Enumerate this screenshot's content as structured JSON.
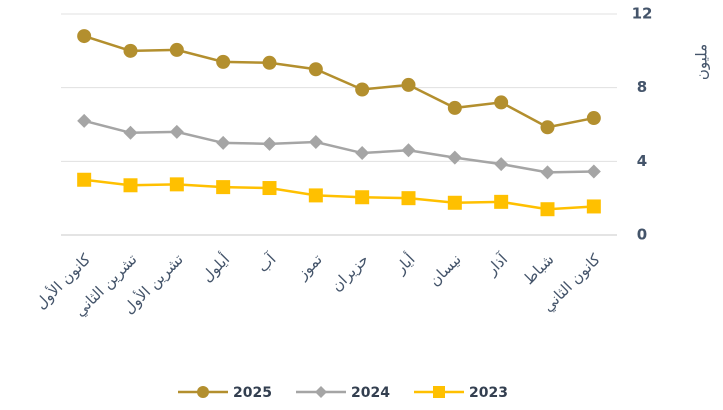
{
  "chart_data": {
    "type": "line",
    "y_label": "مليون",
    "categories": [
      "كانون الأول",
      "تشرين الثاني",
      "تشرين الأول",
      "أيلول",
      "آب",
      "تموز",
      "حزيران",
      "أيار",
      "نيسان",
      "آذار",
      "شباط",
      "كانون الثاني"
    ],
    "series": [
      {
        "name": "2025",
        "color": "#b38f2e",
        "marker": "circle",
        "values": [
          10.8,
          10.0,
          10.05,
          9.4,
          9.35,
          9.0,
          7.9,
          8.15,
          6.9,
          7.2,
          5.85,
          6.35
        ]
      },
      {
        "name": "2024",
        "color": "#a5a5a5",
        "marker": "diamond",
        "values": [
          6.2,
          5.55,
          5.6,
          5.0,
          4.95,
          5.05,
          4.45,
          4.6,
          4.2,
          3.85,
          3.4,
          3.45
        ]
      },
      {
        "name": "2023",
        "color": "#ffc000",
        "marker": "square",
        "values": [
          3.0,
          2.7,
          2.75,
          2.6,
          2.55,
          2.15,
          2.05,
          2.0,
          1.75,
          1.8,
          1.4,
          1.55
        ]
      }
    ],
    "ylim": [
      0,
      12
    ],
    "yticks": [
      0,
      4,
      8,
      12
    ],
    "grid": true,
    "y_axis_side": "right",
    "legend": "bottom"
  }
}
